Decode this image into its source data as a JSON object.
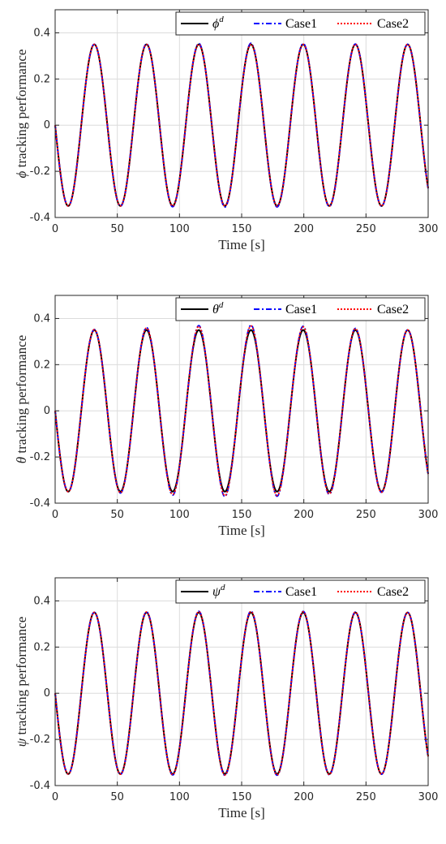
{
  "chart_data": [
    {
      "type": "line",
      "xlabel": "Time [s]",
      "ylabel_symbol": "ϕ",
      "ylabel_text": " tracking performance",
      "xlim": [
        0,
        300
      ],
      "ylim": [
        -0.4,
        0.5
      ],
      "xticks": [
        0,
        50,
        100,
        150,
        200,
        250,
        300
      ],
      "yticks": [
        -0.4,
        -0.2,
        0,
        0.2,
        0.4
      ],
      "ytick_labels": [
        "-0.4",
        "-0.2",
        "0",
        "0.2",
        "0.4"
      ],
      "grid": true,
      "legend_position": "top-right",
      "series": [
        {
          "name_symbol": "ϕ",
          "name_sup": "d",
          "color": "#000000",
          "style": "solid",
          "amplitude": 0.35,
          "period": 42,
          "deviation": 0
        },
        {
          "name": "Case1",
          "color": "#0000ff",
          "style": "dashdot",
          "amplitude": 0.35,
          "period": 42,
          "deviation": 0.005
        },
        {
          "name": "Case2",
          "color": "#ff0000",
          "style": "dotted",
          "amplitude": 0.35,
          "period": 42,
          "deviation": 0
        }
      ]
    },
    {
      "type": "line",
      "xlabel": "Time [s]",
      "ylabel_symbol": "θ",
      "ylabel_text": " tracking performance",
      "xlim": [
        0,
        300
      ],
      "ylim": [
        -0.4,
        0.5
      ],
      "xticks": [
        0,
        50,
        100,
        150,
        200,
        250,
        300
      ],
      "yticks": [
        -0.4,
        -0.2,
        0,
        0.2,
        0.4
      ],
      "ytick_labels": [
        "-0.4",
        "-0.2",
        "0",
        "0.2",
        "0.4"
      ],
      "grid": true,
      "legend_position": "top-right",
      "series": [
        {
          "name_symbol": "θ",
          "name_sup": "d",
          "color": "#000000",
          "style": "solid",
          "amplitude": 0.35,
          "period": 42,
          "deviation": 0
        },
        {
          "name": "Case1",
          "color": "#0000ff",
          "style": "dashdot",
          "amplitude": 0.35,
          "period": 42,
          "deviation": 0.022
        },
        {
          "name": "Case2",
          "color": "#ff0000",
          "style": "dotted",
          "amplitude": 0.35,
          "period": 42,
          "deviation": 0.018
        }
      ]
    },
    {
      "type": "line",
      "xlabel": "Time [s]",
      "ylabel_symbol": "ψ",
      "ylabel_text": " tracking performance",
      "xlim": [
        0,
        300
      ],
      "ylim": [
        -0.4,
        0.5
      ],
      "xticks": [
        0,
        50,
        100,
        150,
        200,
        250,
        300
      ],
      "yticks": [
        -0.4,
        -0.2,
        0,
        0.2,
        0.4
      ],
      "ytick_labels": [
        "-0.4",
        "-0.2",
        "0",
        "0.2",
        "0.4"
      ],
      "grid": true,
      "legend_position": "top-right",
      "series": [
        {
          "name_symbol": "ψ",
          "name_sup": "d",
          "color": "#000000",
          "style": "solid",
          "amplitude": 0.35,
          "period": 42,
          "deviation": 0
        },
        {
          "name": "Case1",
          "color": "#0000ff",
          "style": "dashdot",
          "amplitude": 0.35,
          "period": 42,
          "deviation": 0.006
        },
        {
          "name": "Case2",
          "color": "#ff0000",
          "style": "dotted",
          "amplitude": 0.35,
          "period": 42,
          "deviation": 0.004
        }
      ]
    }
  ]
}
